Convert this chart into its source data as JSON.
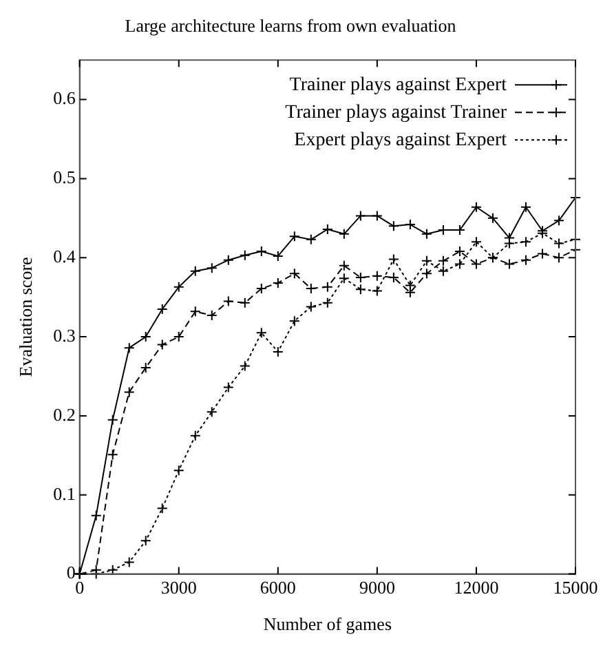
{
  "chart_data": {
    "type": "line",
    "title": "Large architecture learns from own evaluation",
    "xlabel": "Number of games",
    "ylabel": "Evaluation score",
    "x": [
      0,
      500,
      1000,
      1500,
      2000,
      2500,
      3000,
      3500,
      4000,
      4500,
      5000,
      5500,
      6000,
      6500,
      7000,
      7500,
      8000,
      8500,
      9000,
      9500,
      10000,
      10500,
      11000,
      11500,
      12000,
      12500,
      13000,
      13500,
      14000,
      14500,
      15000
    ],
    "series": [
      {
        "name": "Trainer plays against Expert",
        "color": "#000000",
        "marker": "cross",
        "line_style": "solid",
        "values": [
          0,
          0.074,
          0.195,
          0.286,
          0.3,
          0.335,
          0.363,
          0.383,
          0.387,
          0.397,
          0.403,
          0.408,
          0.402,
          0.427,
          0.423,
          0.436,
          0.43,
          0.453,
          0.453,
          0.44,
          0.442,
          0.43,
          0.435,
          0.435,
          0.464,
          0.45,
          0.425,
          0.464,
          0.434,
          0.447,
          0.476
        ]
      },
      {
        "name": "Trainer plays against Trainer",
        "color": "#000000",
        "marker": "cross",
        "line_style": "dashed",
        "values": [
          0,
          0.005,
          0.151,
          0.23,
          0.261,
          0.29,
          0.3,
          0.332,
          0.327,
          0.345,
          0.343,
          0.361,
          0.368,
          0.38,
          0.361,
          0.363,
          0.39,
          0.375,
          0.377,
          0.375,
          0.356,
          0.38,
          0.396,
          0.408,
          0.392,
          0.4,
          0.392,
          0.397,
          0.405,
          0.4,
          0.41
        ]
      },
      {
        "name": "Expert plays against Expert",
        "color": "#000000",
        "marker": "cross",
        "line_style": "dotted",
        "values": [
          0,
          0,
          0.005,
          0.015,
          0.042,
          0.083,
          0.131,
          0.175,
          0.205,
          0.236,
          0.263,
          0.305,
          0.281,
          0.32,
          0.338,
          0.343,
          0.374,
          0.36,
          0.358,
          0.398,
          0.365,
          0.396,
          0.383,
          0.392,
          0.42,
          0.4,
          0.418,
          0.42,
          0.431,
          0.418,
          0.423
        ]
      }
    ],
    "xlim": [
      0,
      15000
    ],
    "xticks": [
      0,
      3000,
      6000,
      9000,
      12000,
      15000
    ],
    "ylim": [
      0,
      0.65
    ],
    "yticks": [
      0,
      0.1,
      0.2,
      0.3,
      0.4,
      0.5,
      0.6
    ],
    "grid": false,
    "legend": "top right"
  }
}
